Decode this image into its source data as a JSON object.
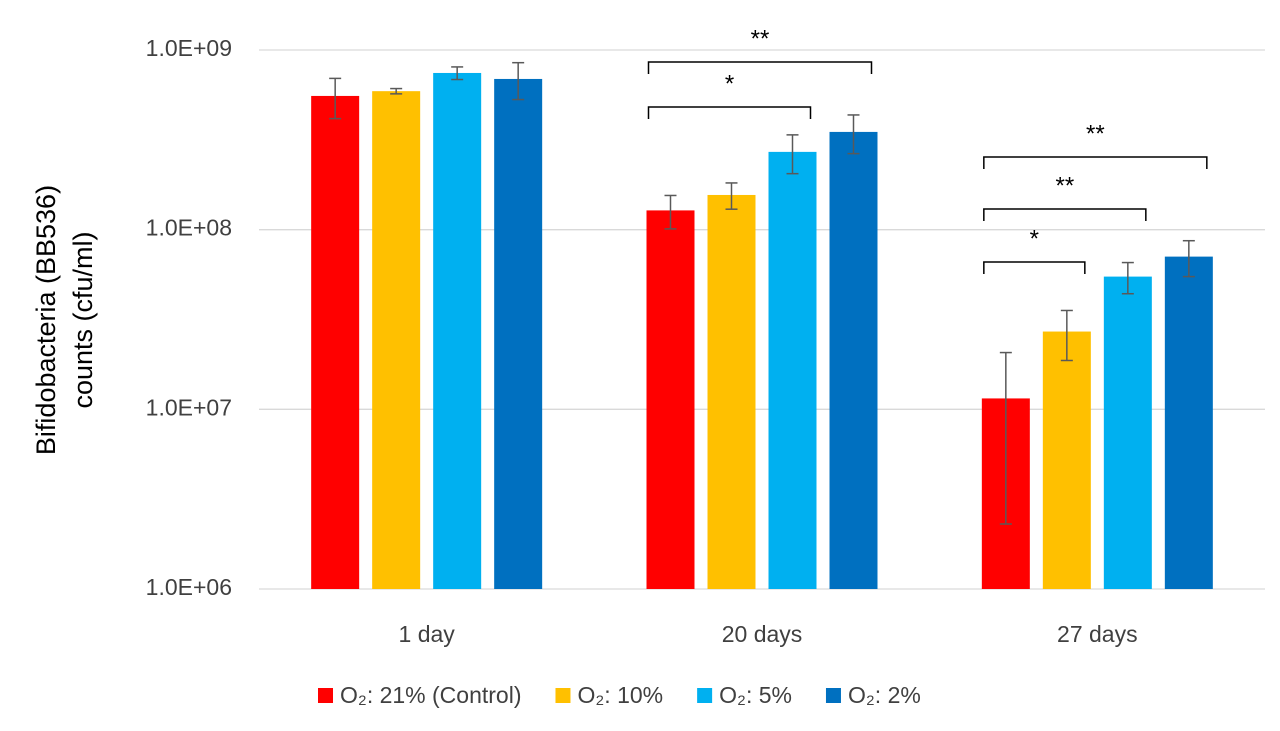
{
  "chart_data": {
    "type": "bar",
    "y_label": [
      "Bifidobacteria (BB536)",
      "counts (cfu/ml)"
    ],
    "categories": [
      "1 day",
      "20 days",
      "27 days"
    ],
    "log_scale": true,
    "grid": true,
    "legend": "bottom",
    "ylim": [
      1000000,
      1000000000
    ],
    "yticks": [
      {
        "value": 1000000,
        "label": "1.0E+06"
      },
      {
        "value": 10000000,
        "label": "1.0E+07"
      },
      {
        "value": 100000000,
        "label": "1.0E+08"
      },
      {
        "value": 1000000000,
        "label": "1.0E+09"
      }
    ],
    "series": [
      {
        "name": "O₂: 21% (Control)",
        "color": "#ff0000",
        "values": [
          555000000,
          128000000,
          11500000
        ],
        "errors": [
          140000000,
          27000000,
          9200000
        ]
      },
      {
        "name": "O₂: 10%",
        "color": "#ffc000",
        "values": [
          590000000,
          156000000,
          27100000
        ],
        "errors": [
          20000000,
          26000000,
          8400000
        ]
      },
      {
        "name": "O₂: 5%",
        "color": "#00b0f0",
        "values": [
          745000000,
          271000000,
          54800000
        ],
        "errors": [
          60000000,
          66000000,
          10800000
        ]
      },
      {
        "name": "O₂: 2%",
        "color": "#0070c0",
        "values": [
          690000000,
          350000000,
          70800000
        ],
        "errors": [
          160000000,
          85000000,
          16000000
        ]
      }
    ],
    "annotations": [
      "**",
      "*",
      "**",
      "**",
      "*"
    ]
  }
}
